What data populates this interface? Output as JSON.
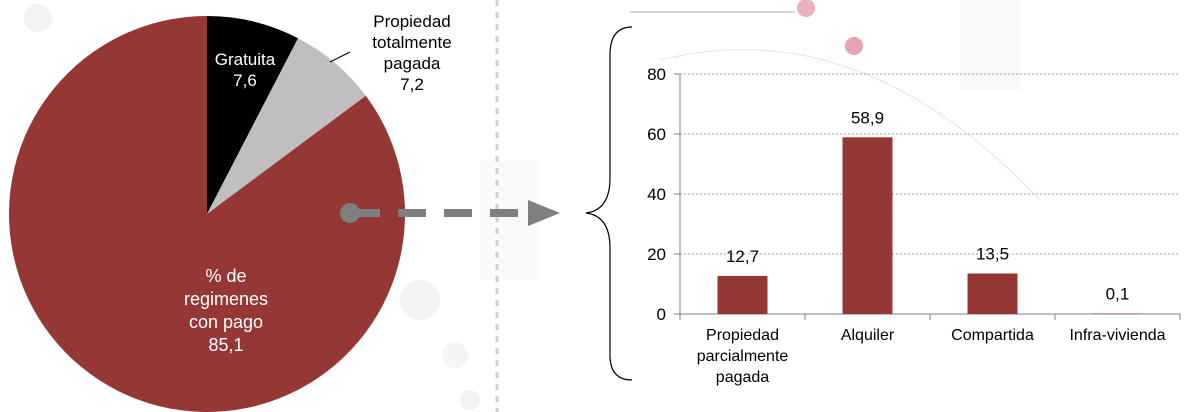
{
  "colors": {
    "primary": "#953735",
    "black": "#000000",
    "gray": "#bfbfbf",
    "connector": "#7f7f7f",
    "grid": "#a6a6a6"
  },
  "chart_data": [
    {
      "type": "pie",
      "slices": [
        {
          "label_lines": [
            "Gratuita",
            "7,6"
          ],
          "value": 7.6,
          "color": "#000000",
          "label_color": "#ffffff"
        },
        {
          "label_lines": [
            "Propiedad",
            "totalmente",
            "pagada",
            "7,2"
          ],
          "value": 7.2,
          "color": "#bfbfbf",
          "label_color": "#000000"
        },
        {
          "label_lines": [
            "% de",
            "regimenes",
            "con pago",
            "85,1"
          ],
          "value": 85.1,
          "color": "#953735",
          "label_color": "#ffffff"
        }
      ]
    },
    {
      "type": "bar",
      "categories": [
        [
          "Propiedad",
          "parcialmente",
          "pagada"
        ],
        [
          "Alquiler"
        ],
        [
          "Compartida"
        ],
        [
          "Infra-vivienda"
        ]
      ],
      "values": [
        12.7,
        58.9,
        13.5,
        0.1
      ],
      "value_labels": [
        "12,7",
        "58,9",
        "13,5",
        "0,1"
      ],
      "ylim": [
        0,
        80
      ],
      "yticks": [
        0,
        20,
        40,
        60,
        80
      ],
      "grid": true,
      "bar_color": "#953735"
    }
  ]
}
